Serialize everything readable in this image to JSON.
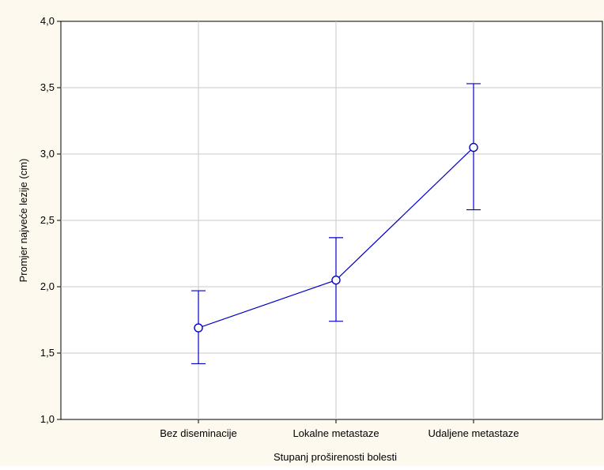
{
  "chart_data": {
    "type": "line",
    "title": "",
    "xlabel": "Stupanj proširenosti bolesti",
    "ylabel": "Promjer najveće lezije (cm)",
    "categories": [
      "Bez diseminacije",
      "Lokalne metastaze",
      "Udaljene metastaze"
    ],
    "series": [
      {
        "values": [
          1.69,
          2.05,
          3.05
        ],
        "error_low": [
          1.42,
          1.74,
          2.58
        ],
        "error_high": [
          1.97,
          2.37,
          3.53
        ]
      }
    ],
    "ylim": [
      1.0,
      4.0
    ],
    "yticks": [
      1.0,
      1.5,
      2.0,
      2.5,
      3.0,
      3.5,
      4.0
    ],
    "ytick_labels": [
      "1,0",
      "1,5",
      "2,0",
      "2,5",
      "3,0",
      "3,5",
      "4,0"
    ],
    "grid": true,
    "colors": {
      "series": "#0000cc",
      "grid": "#c8c8c8",
      "background": "#fdf9ee",
      "plot_background": "#ffffff"
    }
  }
}
